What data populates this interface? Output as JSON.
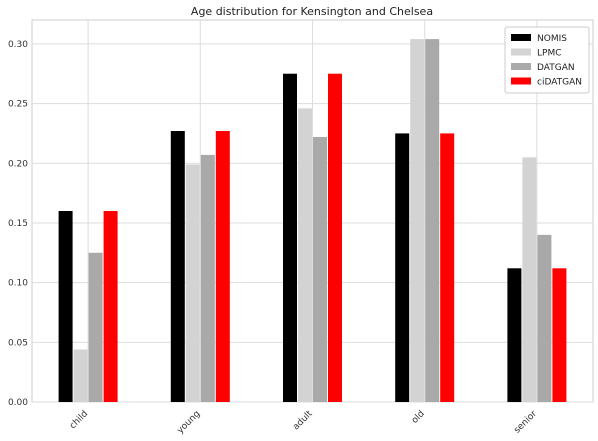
{
  "chart_data": {
    "type": "bar",
    "title": "Age distribution for Kensington and Chelsea",
    "xlabel": "",
    "ylabel": "",
    "categories": [
      "child",
      "young",
      "adult",
      "old",
      "senior"
    ],
    "series": [
      {
        "name": "NOMIS",
        "color": "#000000",
        "values": [
          0.16,
          0.227,
          0.275,
          0.225,
          0.112
        ]
      },
      {
        "name": "LPMC",
        "color": "#d3d3d3",
        "values": [
          0.044,
          0.199,
          0.246,
          0.304,
          0.205
        ]
      },
      {
        "name": "DATGAN",
        "color": "#a9a9a9",
        "values": [
          0.125,
          0.207,
          0.222,
          0.304,
          0.14
        ]
      },
      {
        "name": "ciDATGAN",
        "color": "#ff0000",
        "values": [
          0.16,
          0.227,
          0.275,
          0.225,
          0.112
        ]
      }
    ],
    "ylim": [
      0,
      0.32
    ],
    "yticks": [
      "0.00",
      "0.05",
      "0.10",
      "0.15",
      "0.20",
      "0.25",
      "0.30"
    ],
    "grid": true,
    "legend_position": "top-right"
  }
}
